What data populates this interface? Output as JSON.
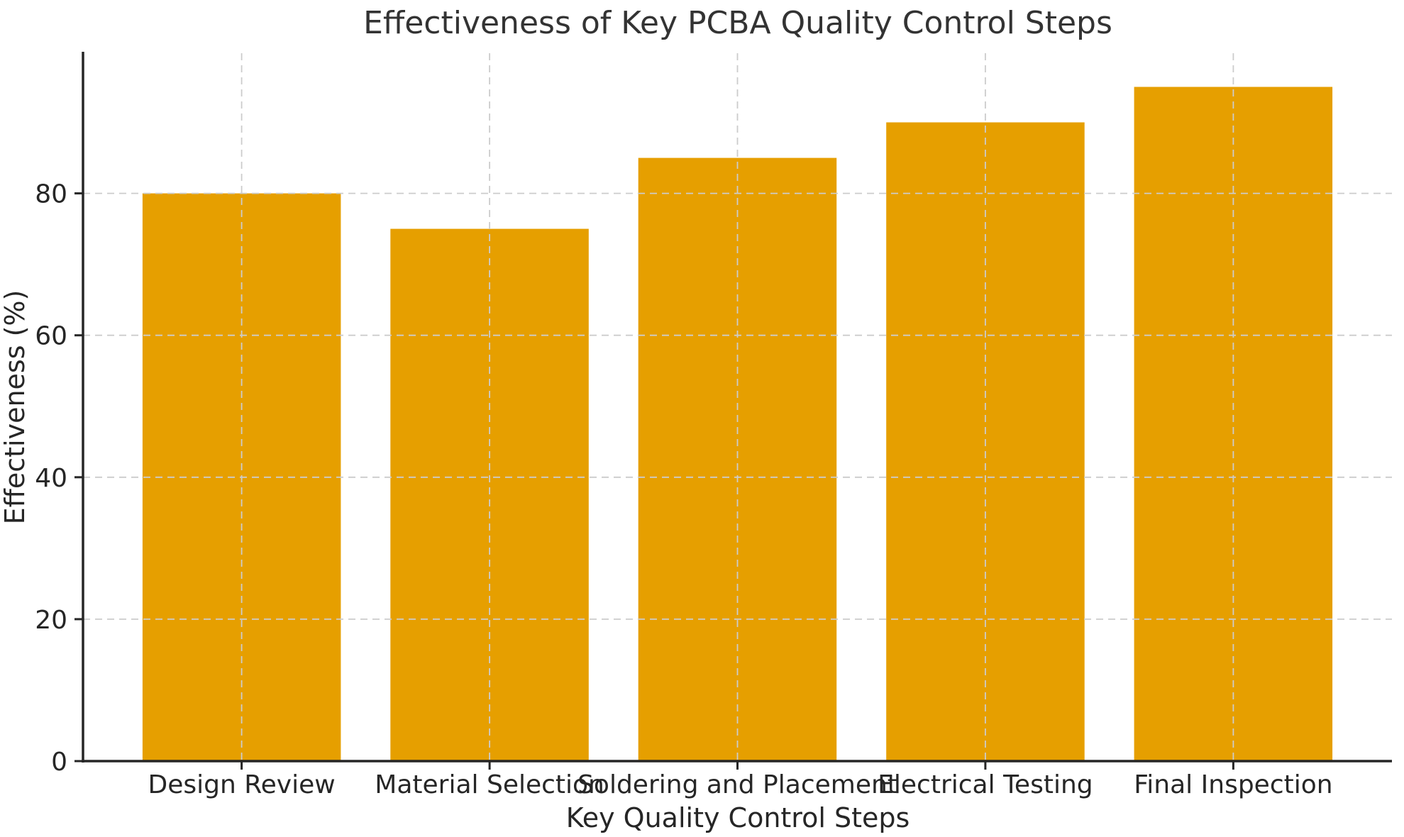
{
  "page": {
    "background": "#ffffff"
  },
  "chart_data": {
    "type": "bar",
    "title": "Effectiveness of Key PCBA Quality Control Steps",
    "xlabel": "Key Quality Control Steps",
    "ylabel": "Effectiveness (%)",
    "categories": [
      "Design Review",
      "Material Selection",
      "Soldering and Placement",
      "Electrical Testing",
      "Final Inspection"
    ],
    "values": [
      80,
      75,
      85,
      90,
      95
    ],
    "yticks": [
      0,
      20,
      40,
      60,
      80
    ],
    "ylim": [
      0,
      99.75
    ],
    "xlim": [
      -0.64,
      4.64
    ],
    "bar_width": 0.8,
    "bar_color": "#E69F00",
    "grid": "on",
    "grid_style": "dashed",
    "grid_color": "#cccccc",
    "axis_color": "#262626",
    "text_color": "#262626",
    "legend": "none"
  }
}
